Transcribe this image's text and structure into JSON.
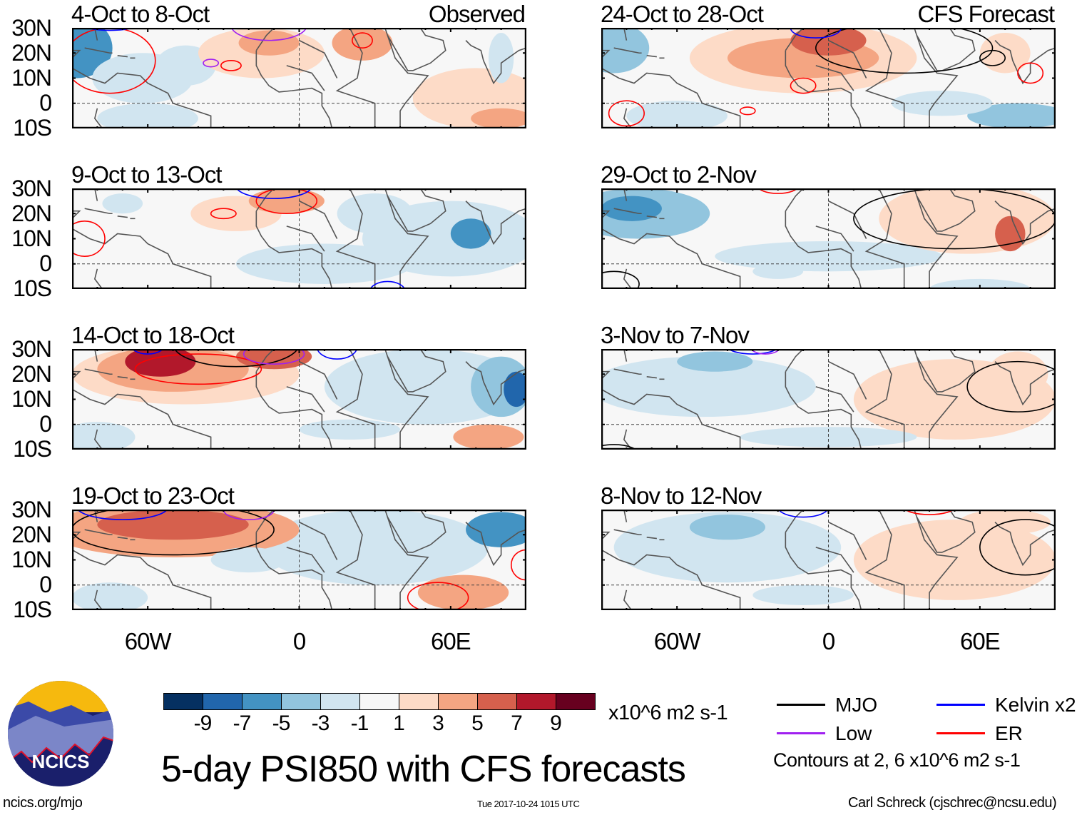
{
  "panels_left": [
    {
      "title": "4-Oct to 8-Oct",
      "label": "Observed"
    },
    {
      "title": "9-Oct to 13-Oct"
    },
    {
      "title": "14-Oct to 18-Oct"
    },
    {
      "title": "19-Oct to 23-Oct"
    }
  ],
  "panels_right": [
    {
      "title": "24-Oct to 28-Oct",
      "label": "CFS Forecast"
    },
    {
      "title": "29-Oct to 2-Nov"
    },
    {
      "title": "3-Nov to 7-Nov"
    },
    {
      "title": "8-Nov to 12-Nov"
    }
  ],
  "lat_labels": [
    "30N",
    "20N",
    "10N",
    "0",
    "10S"
  ],
  "lon_labels": [
    "60W",
    "0",
    "60E"
  ],
  "colorbar": {
    "colors": [
      "#053061",
      "#2166ac",
      "#4393c3",
      "#92c5de",
      "#d1e5f0",
      "#f7f7f7",
      "#fddbc7",
      "#f4a582",
      "#d6604d",
      "#b2182b",
      "#67001f"
    ],
    "labels": [
      "-9",
      "-7",
      "-5",
      "-3",
      "-1",
      "1",
      "3",
      "5",
      "7",
      "9"
    ],
    "units": "x10^6 m2 s-1"
  },
  "legend": {
    "items": [
      {
        "label": "MJO",
        "color": "#000000"
      },
      {
        "label": "Kelvin x2",
        "color": "#0000ff"
      },
      {
        "label": "Low",
        "color": "#a020f0"
      },
      {
        "label": "ER",
        "color": "#ff0000"
      }
    ],
    "note": "Contours at 2, 6 x10^6 m2 s-1"
  },
  "logo_text": "NCICS",
  "title": "5-day PSI850 with CFS forecasts",
  "footer": {
    "url": "ncics.org/mjo",
    "timestamp": "Tue 2017-10-24 1015 UTC",
    "author": "Carl Schreck (cjschrec@ncsu.edu)"
  }
}
